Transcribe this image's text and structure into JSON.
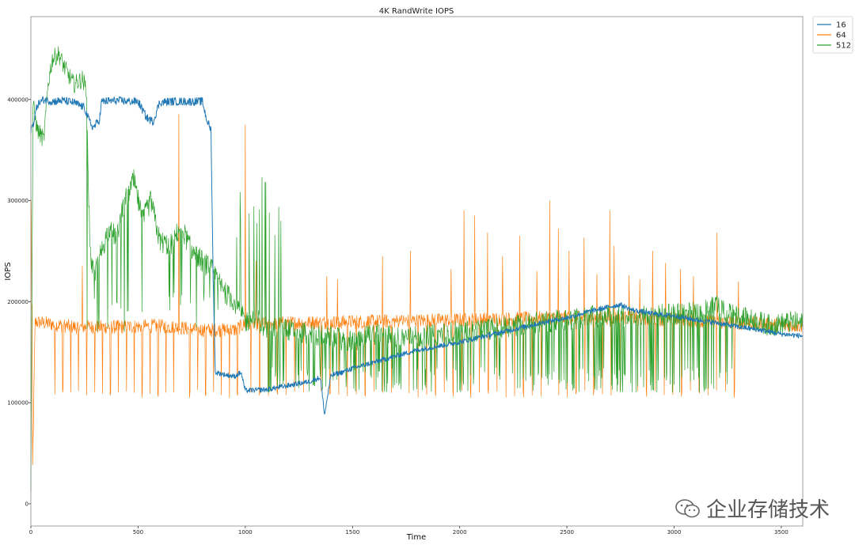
{
  "chart_data": {
    "type": "line",
    "title": "4K RandWrite IOPS",
    "xlabel": "Time",
    "ylabel": "IOPS",
    "xlim": [
      0,
      3600
    ],
    "ylim": [
      -22000,
      482000
    ],
    "x_ticks": [
      0,
      500,
      1000,
      1500,
      2000,
      2500,
      3000,
      3500
    ],
    "y_ticks": [
      0,
      100000,
      200000,
      300000,
      400000
    ],
    "grid": false,
    "legend": "top-right",
    "series": [
      {
        "name": "16",
        "color": "#1f77b4",
        "x": [
          0,
          10,
          30,
          60,
          100,
          150,
          200,
          250,
          270,
          290,
          320,
          330,
          400,
          470,
          500,
          540,
          570,
          600,
          650,
          700,
          760,
          800,
          820,
          840,
          850,
          860,
          900,
          950,
          980,
          1000,
          1100,
          1200,
          1300,
          1350,
          1370,
          1390,
          1400,
          1450,
          1500,
          1600,
          1650,
          1700,
          1800,
          1900,
          2000,
          2100,
          2200,
          2300,
          2400,
          2500,
          2600,
          2700,
          2750,
          2800,
          2900,
          3000,
          3100,
          3200,
          3300,
          3400,
          3500,
          3600
        ],
        "values": [
          370000,
          375000,
          395000,
          400000,
          398000,
          399000,
          397000,
          392000,
          380000,
          372000,
          380000,
          398000,
          399000,
          398000,
          398000,
          382000,
          378000,
          397000,
          398000,
          398000,
          398000,
          398000,
          380000,
          370000,
          225000,
          130000,
          128000,
          126000,
          130000,
          112000,
          113000,
          117000,
          121000,
          125000,
          88000,
          115000,
          127000,
          130000,
          134000,
          140000,
          143000,
          146000,
          152000,
          156000,
          160000,
          165000,
          170000,
          175000,
          180000,
          184000,
          190000,
          195000,
          197000,
          192000,
          188000,
          186000,
          182000,
          179000,
          175000,
          172000,
          168000,
          166000
        ]
      },
      {
        "name": "64",
        "color": "#ff7f0e",
        "base": [
          0,
          0,
          180000,
          175000,
          175000,
          176000,
          172000,
          172000,
          178000,
          180000,
          182000,
          184000,
          184000,
          182000,
          180000,
          178000,
          176000
        ],
        "base_x": [
          0,
          5,
          20,
          200,
          400,
          600,
          800,
          950,
          1000,
          1500,
          2000,
          2500,
          2800,
          3000,
          3200,
          3400,
          3600
        ],
        "dip_low": 105000,
        "spike_x": [
          240,
          690,
          1000,
          1050,
          1380,
          1430,
          1640,
          1770,
          1960,
          2020,
          2070,
          2130,
          2200,
          2280,
          2360,
          2420,
          2460,
          2510,
          2580,
          2640,
          2700,
          2720,
          2790,
          2840,
          2900,
          2960,
          3030,
          3090,
          3200,
          3300
        ],
        "spike_y": [
          235000,
          385000,
          375000,
          240000,
          225000,
          222000,
          245000,
          250000,
          232000,
          290000,
          285000,
          268000,
          245000,
          265000,
          230000,
          300000,
          272000,
          250000,
          263000,
          227000,
          290000,
          255000,
          226000,
          222000,
          250000,
          238000,
          232000,
          225000,
          268000,
          220000
        ]
      },
      {
        "name": "512",
        "color": "#2ca02c",
        "x": [
          0,
          10,
          30,
          60,
          80,
          100,
          130,
          160,
          200,
          240,
          260,
          270,
          280,
          300,
          330,
          360,
          400,
          440,
          480,
          520,
          560,
          600,
          650,
          700,
          750,
          800,
          850,
          900,
          950,
          1000,
          1050,
          1100,
          1150,
          1200,
          1300,
          1400,
          1500,
          1600,
          1700,
          1800,
          1900,
          2000,
          2100,
          2200,
          2300,
          2400,
          2500,
          2600,
          2700,
          2800,
          2900,
          3000,
          3100,
          3150,
          3200,
          3250,
          3300,
          3400,
          3450,
          3500,
          3550,
          3600
        ],
        "values": [
          20000,
          395000,
          370000,
          360000,
          415000,
          440000,
          445000,
          430000,
          415000,
          420000,
          410000,
          300000,
          235000,
          230000,
          250000,
          270000,
          265000,
          300000,
          320000,
          280000,
          300000,
          260000,
          255000,
          275000,
          250000,
          240000,
          230000,
          210000,
          200000,
          180000,
          185000,
          170000,
          175000,
          172000,
          168000,
          165000,
          160000,
          168000,
          165000,
          165000,
          168000,
          170000,
          172000,
          175000,
          178000,
          180000,
          182000,
          185000,
          186000,
          185000,
          186000,
          188000,
          190000,
          192000,
          195000,
          188000,
          185000,
          180000,
          176000,
          178000,
          180000,
          178000
        ],
        "dip_low": 110000
      }
    ]
  },
  "watermark": {
    "text": "企业存储技术",
    "icon": "wechat-icon"
  }
}
